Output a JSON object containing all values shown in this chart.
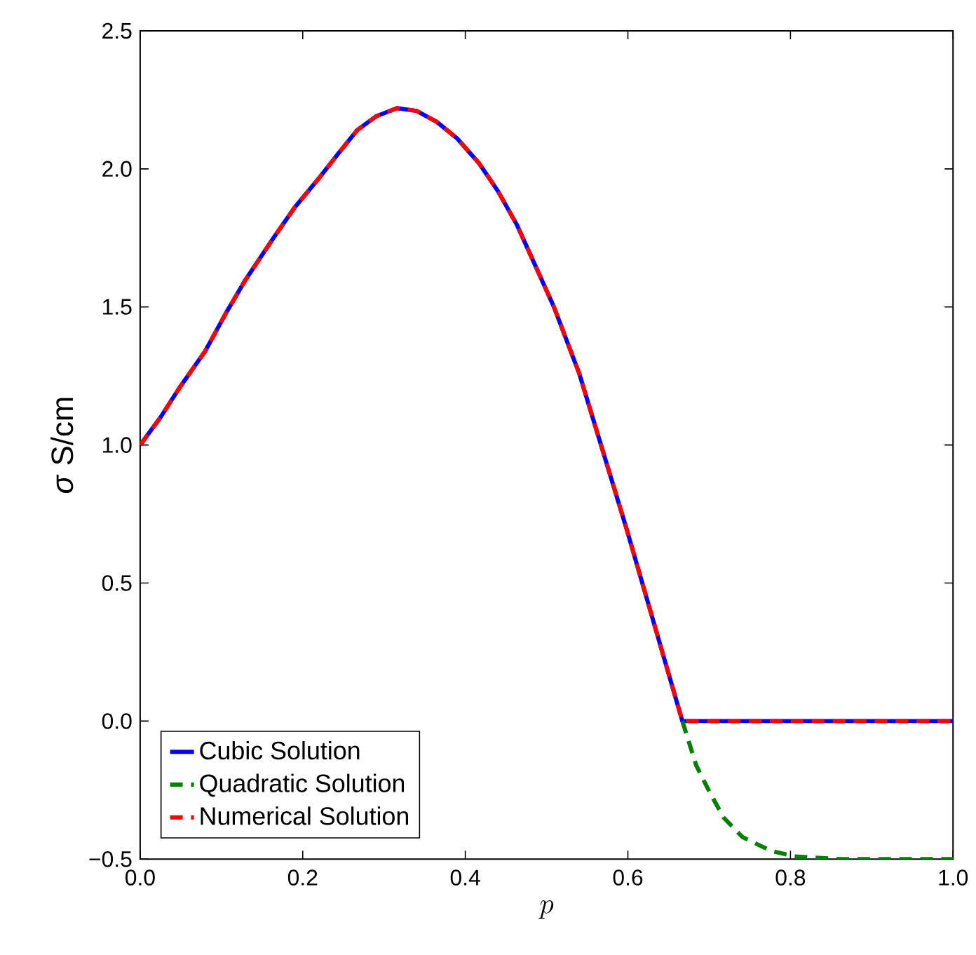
{
  "chart_data": {
    "type": "line",
    "xlabel": "p",
    "ylabel": "*σ* S/cm",
    "xlim": [
      0,
      1
    ],
    "ylim": [
      -0.5,
      2.5
    ],
    "xticks": [
      {
        "value": 0,
        "label": "0.0"
      },
      {
        "value": 0.2,
        "label": "0.2"
      },
      {
        "value": 0.4,
        "label": "0.4"
      },
      {
        "value": 0.6,
        "label": "0.6"
      },
      {
        "value": 0.8,
        "label": "0.8"
      },
      {
        "value": 1,
        "label": "1.0"
      }
    ],
    "yticks": [
      {
        "value": -0.5,
        "label": "−0.5"
      },
      {
        "value": 0,
        "label": "0.0"
      },
      {
        "value": 0.5,
        "label": "0.5"
      },
      {
        "value": 1,
        "label": "1.0"
      },
      {
        "value": 1.5,
        "label": "1.5"
      },
      {
        "value": 2,
        "label": "2.0"
      },
      {
        "value": 2.5,
        "label": "2.5"
      }
    ],
    "grid": false,
    "legend": "bottom left",
    "series": [
      {
        "name": "Cubic Solution",
        "color": "#0000ff",
        "line_style": "solid",
        "x": [
          0,
          0.025,
          0.049,
          0.08,
          0.106,
          0.13,
          0.164,
          0.19,
          0.221,
          0.245,
          0.267,
          0.29,
          0.316,
          0.34,
          0.365,
          0.39,
          0.417,
          0.44,
          0.463,
          0.483,
          0.509,
          0.54,
          0.598,
          0.667,
          1.0
        ],
        "values": [
          1.0,
          1.1,
          1.21,
          1.34,
          1.48,
          1.6,
          1.75,
          1.86,
          1.97,
          2.06,
          2.14,
          2.19,
          2.22,
          2.21,
          2.17,
          2.11,
          2.02,
          1.92,
          1.8,
          1.67,
          1.5,
          1.26,
          0.7,
          0.0,
          0.0
        ]
      },
      {
        "name": "Quadratic Solution",
        "color": "#008000",
        "line_style": "dashed",
        "x": [
          0.667,
          0.684,
          0.701,
          0.718,
          0.741,
          0.776,
          0.805,
          0.862,
          1.0
        ],
        "values": [
          0.0,
          -0.16,
          -0.26,
          -0.35,
          -0.42,
          -0.47,
          -0.49,
          -0.5,
          -0.5
        ]
      },
      {
        "name": "Numerical Solution",
        "color": "#ff0000",
        "line_style": "dashed",
        "x": [
          0,
          0.025,
          0.049,
          0.08,
          0.106,
          0.13,
          0.164,
          0.19,
          0.221,
          0.245,
          0.267,
          0.29,
          0.316,
          0.34,
          0.365,
          0.39,
          0.417,
          0.44,
          0.463,
          0.483,
          0.509,
          0.54,
          0.598,
          0.667,
          1.0
        ],
        "values": [
          1.0,
          1.1,
          1.21,
          1.34,
          1.48,
          1.6,
          1.75,
          1.86,
          1.97,
          2.06,
          2.14,
          2.19,
          2.22,
          2.21,
          2.17,
          2.11,
          2.02,
          1.92,
          1.8,
          1.67,
          1.5,
          1.26,
          0.7,
          0.0,
          0.0
        ]
      }
    ]
  }
}
